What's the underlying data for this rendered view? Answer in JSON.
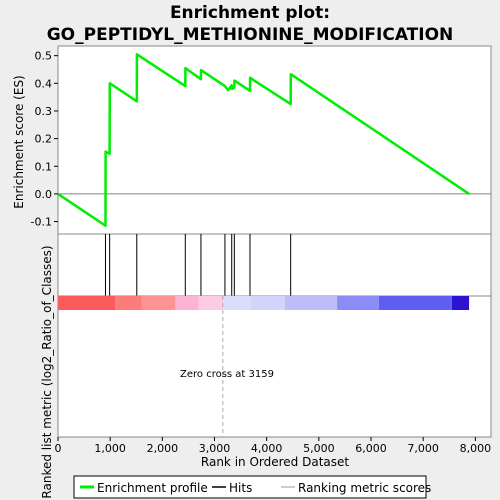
{
  "chart_data": {
    "type": "line",
    "title_lines": [
      "Enrichment plot:",
      "GO_PEPTIDYL_METHIONINE_MODIFICATION"
    ],
    "ylabel_top": "Enrichment score (ES)",
    "ylabel_bottom": "Ranked list metric (log2_Ratio_of_Classes)",
    "xlabel": "Rank in Ordered Dataset",
    "xlim": [
      0,
      8300
    ],
    "ylim_top": [
      -0.145,
      0.535
    ],
    "x_ticks": [
      0,
      1000,
      2000,
      3000,
      4000,
      5000,
      6000,
      7000,
      8000
    ],
    "x_tick_labels": [
      "0",
      "1,000",
      "2,000",
      "3,000",
      "4,000",
      "5,000",
      "6,000",
      "7,000",
      "8,000"
    ],
    "y_ticks": [
      -0.1,
      0.0,
      0.1,
      0.2,
      0.3,
      0.4,
      0.5
    ],
    "y_tick_labels": [
      "-0.1",
      "0.0",
      "0.1",
      "0.2",
      "0.3",
      "0.4",
      "0.5"
    ],
    "series": [
      {
        "name": "Enrichment profile",
        "color": "#00ee00",
        "x": [
          0,
          910,
          912,
          990,
          992,
          1510,
          1512,
          2440,
          2442,
          2740,
          2742,
          3200,
          3260,
          3330,
          3332,
          3380,
          3382,
          3680,
          3682,
          4460,
          4462,
          7880
        ],
        "y": [
          0.0,
          -0.115,
          0.153,
          0.145,
          0.4,
          0.335,
          0.505,
          0.39,
          0.455,
          0.415,
          0.448,
          0.39,
          0.375,
          0.393,
          0.38,
          0.383,
          0.41,
          0.373,
          0.42,
          0.325,
          0.433,
          0.0
        ]
      }
    ],
    "hits": [
      910,
      990,
      1510,
      2440,
      2740,
      3200,
      3330,
      3380,
      3680,
      4460
    ],
    "zero_cross": 3159,
    "zero_cross_label": "Zero cross at 3159",
    "metric_bar": {
      "x_range": [
        0,
        7880
      ],
      "segments": [
        {
          "from": 0,
          "to": 1100,
          "color": "#fb5b5b"
        },
        {
          "from": 1100,
          "to": 1600,
          "color": "#fc7c7c"
        },
        {
          "from": 1600,
          "to": 2250,
          "color": "#fd9393"
        },
        {
          "from": 2250,
          "to": 2700,
          "color": "#fdb3d3"
        },
        {
          "from": 2700,
          "to": 3159,
          "color": "#fdcbe6"
        },
        {
          "from": 3159,
          "to": 3700,
          "color": "#dcdcfb"
        },
        {
          "from": 3700,
          "to": 4350,
          "color": "#d3d3fb"
        },
        {
          "from": 4350,
          "to": 5350,
          "color": "#bdbdfa"
        },
        {
          "from": 5350,
          "to": 6150,
          "color": "#8c8cf6"
        },
        {
          "from": 6150,
          "to": 7550,
          "color": "#5e5ef0"
        },
        {
          "from": 7550,
          "to": 7880,
          "color": "#2a14d0"
        }
      ]
    },
    "legend": {
      "placement": "bottom",
      "items": [
        {
          "label": "Enrichment profile",
          "color": "#00ee00",
          "kind": "thick-line"
        },
        {
          "label": "Hits",
          "color": "#000000",
          "kind": "line"
        },
        {
          "label": "Ranking metric scores",
          "color": "#bbbbbb",
          "kind": "line"
        }
      ]
    },
    "grid": false
  }
}
